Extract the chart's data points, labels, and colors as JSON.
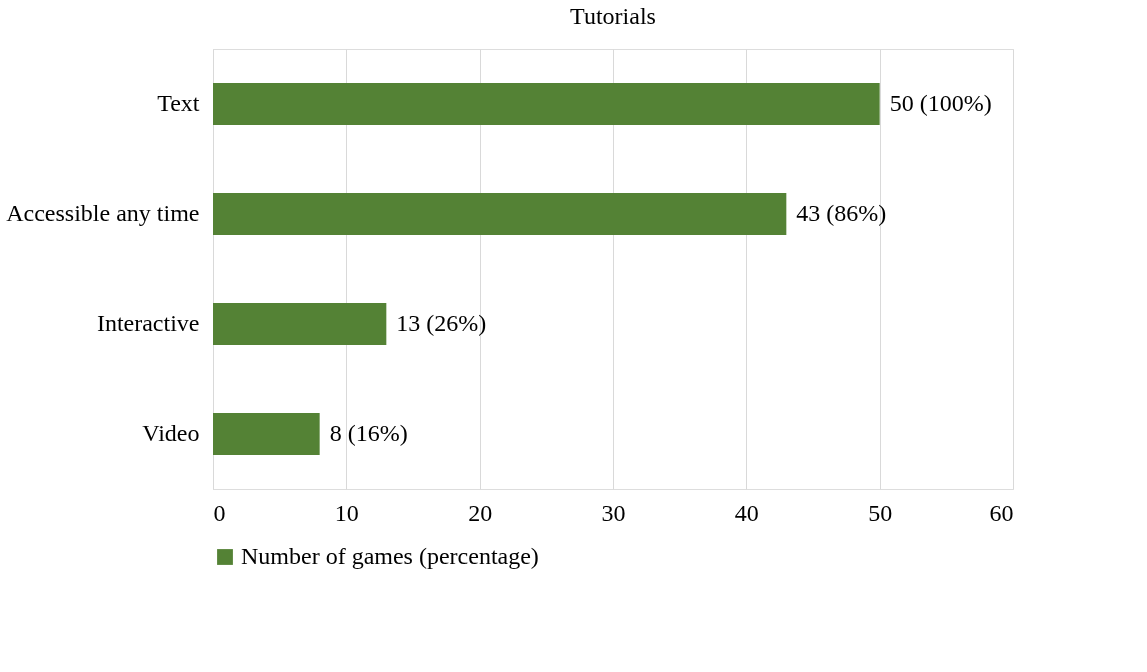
{
  "chart_data": {
    "type": "bar",
    "orientation": "horizontal",
    "title": "Tutorials",
    "categories": [
      "Text",
      "Accessible any time",
      "Interactive",
      "Video"
    ],
    "series": [
      {
        "name": "Number of games (percentage)",
        "color": "#548235",
        "values": [
          50,
          43,
          13,
          8
        ],
        "value_labels": [
          "50 (100%)",
          "43 (86%)",
          "13 (26%)",
          "8 (16%)"
        ]
      }
    ],
    "xlim": [
      0,
      60
    ],
    "xticks": [
      0,
      10,
      20,
      30,
      40,
      50,
      60
    ],
    "grid": "x",
    "legend": "bottom"
  }
}
